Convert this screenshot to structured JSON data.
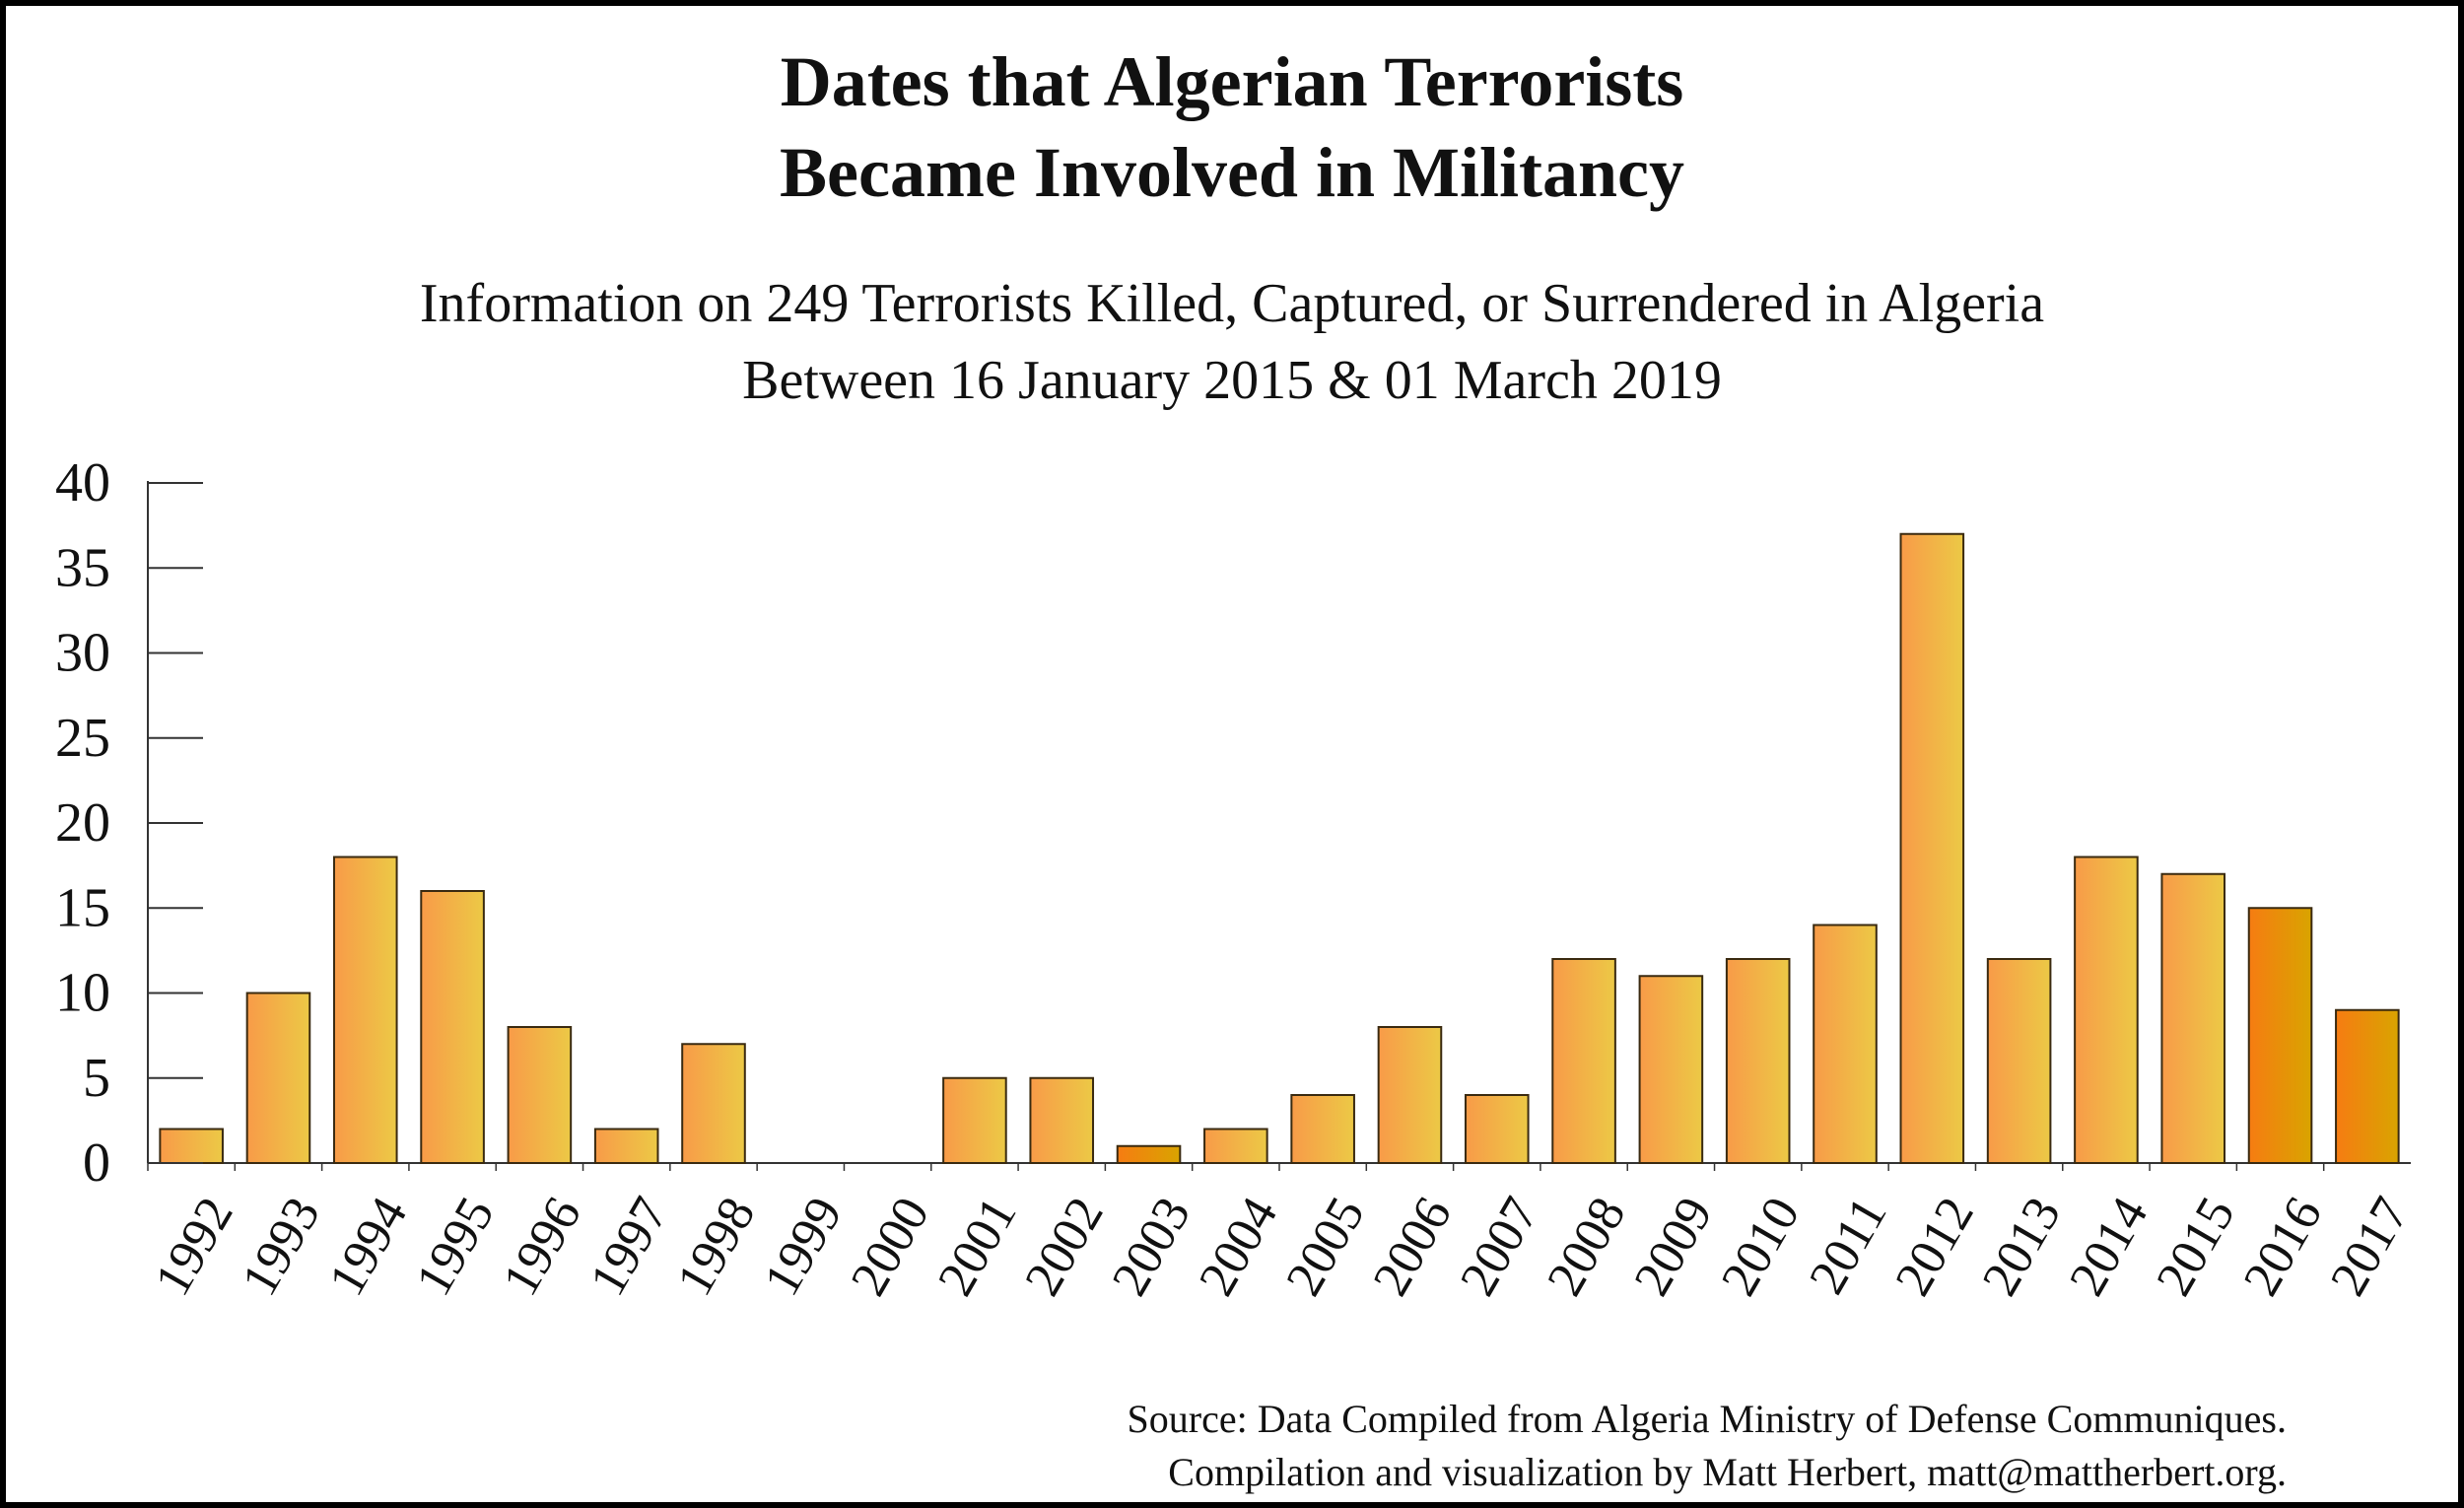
{
  "title": {
    "line1": "Dates that Algerian Terrorists",
    "line2": "Became Involved in Militancy"
  },
  "subtitle": {
    "line1": "Information on 249 Terrorists Killed, Captured, or Surrendered in Algeria",
    "line2": "Between 16 January 2015 & 01 March 2019"
  },
  "source": {
    "line1": "Source: Data Compiled from Algeria Ministry of Defense Communiques.",
    "line2": "Compilation and visualization by Matt Herbert, matt@mattherbert.org."
  },
  "colors": {
    "bar_light": "#f89b48",
    "bar_yellow": "#ecc946",
    "bar_deep": "#f67c12",
    "bar_gold": "#d9a400",
    "axis": "#333333"
  },
  "chart_data": {
    "type": "bar",
    "title": "Dates that Algerian Terrorists Became Involved in Militancy",
    "xlabel": "",
    "ylabel": "",
    "categories": [
      "1992",
      "1993",
      "1994",
      "1995",
      "1996",
      "1997",
      "1998",
      "1999",
      "2000",
      "2001",
      "2002",
      "2003",
      "2004",
      "2005",
      "2006",
      "2007",
      "2008",
      "2009",
      "2010",
      "2011",
      "2012",
      "2013",
      "2014",
      "2015",
      "2016",
      "2017"
    ],
    "values": [
      2,
      10,
      18,
      16,
      8,
      2,
      7,
      0,
      0,
      5,
      5,
      1,
      2,
      4,
      8,
      4,
      12,
      11,
      12,
      14,
      37,
      12,
      18,
      17,
      15,
      9
    ],
    "ylim": [
      0,
      40
    ],
    "yticks": [
      0,
      5,
      10,
      15,
      20,
      25,
      30,
      35,
      40
    ],
    "grid": false,
    "legend": "none"
  }
}
